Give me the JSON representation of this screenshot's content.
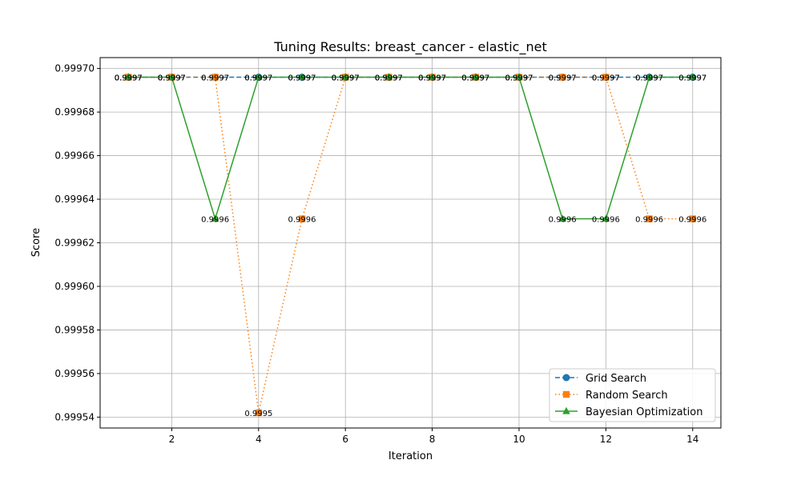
{
  "chart_data": {
    "type": "line",
    "title": "Tuning Results: breast_cancer - elastic_net",
    "xlabel": "Iteration",
    "ylabel": "Score",
    "xlim": [
      0.35,
      14.65
    ],
    "ylim": [
      0.999535,
      0.999705
    ],
    "x_ticks": [
      2,
      4,
      6,
      8,
      10,
      12,
      14
    ],
    "y_ticks": [
      0.99954,
      0.99956,
      0.99958,
      0.9996,
      0.99962,
      0.99964,
      0.99966,
      0.99968,
      0.9997
    ],
    "y_tick_labels": [
      "0.99954",
      "0.99956",
      "0.99958",
      "0.99960",
      "0.99962",
      "0.99964",
      "0.99966",
      "0.99968",
      "0.99970"
    ],
    "grid": true,
    "legend_position": "lower-right",
    "x": [
      1,
      2,
      3,
      4,
      5,
      6,
      7,
      8,
      9,
      10,
      11,
      12,
      13,
      14
    ],
    "series": [
      {
        "name": "Grid Search",
        "color": "#1f77b4",
        "marker": "circle",
        "linestyle": "dashed",
        "values": [
          0.999696,
          0.999696,
          0.999696,
          0.999696,
          0.999696,
          0.999696,
          0.999696,
          0.999696,
          0.999696,
          0.999696,
          0.999696,
          0.999696,
          0.999696,
          0.999696
        ],
        "labels": [
          "0.9997",
          "0.9997",
          "0.9997",
          "0.9997",
          "0.9997",
          "0.9997",
          "0.9997",
          "0.9997",
          "0.9997",
          "0.9997",
          "0.9997",
          "0.9997",
          "0.9997",
          "0.9997"
        ]
      },
      {
        "name": "Random Search",
        "color": "#ff7f0e",
        "marker": "square",
        "linestyle": "dotted",
        "values": [
          0.999696,
          0.999696,
          0.999696,
          0.999542,
          0.999631,
          0.999696,
          0.999696,
          0.999696,
          0.999696,
          0.999696,
          0.999696,
          0.999696,
          0.999631,
          0.999631
        ],
        "labels": [
          "0.9997",
          "0.9997",
          "0.9997",
          "0.9995",
          "0.9996",
          "0.9997",
          "0.9997",
          "0.9997",
          "0.9997",
          "0.9997",
          "0.9997",
          "0.9997",
          "0.9996",
          "0.9996"
        ]
      },
      {
        "name": "Bayesian Optimization",
        "color": "#2ca02c",
        "marker": "triangle",
        "linestyle": "solid",
        "values": [
          0.999696,
          0.999696,
          0.999631,
          0.999696,
          0.999696,
          0.999696,
          0.999696,
          0.999696,
          0.999696,
          0.999696,
          0.999631,
          0.999631,
          0.999696,
          0.999696
        ],
        "labels": [
          "0.9997",
          "0.9997",
          "0.9996",
          "0.9997",
          "0.9997",
          "0.9997",
          "0.9997",
          "0.9997",
          "0.9997",
          "0.9997",
          "0.9996",
          "0.9996",
          "0.9997",
          "0.9997"
        ]
      }
    ]
  }
}
